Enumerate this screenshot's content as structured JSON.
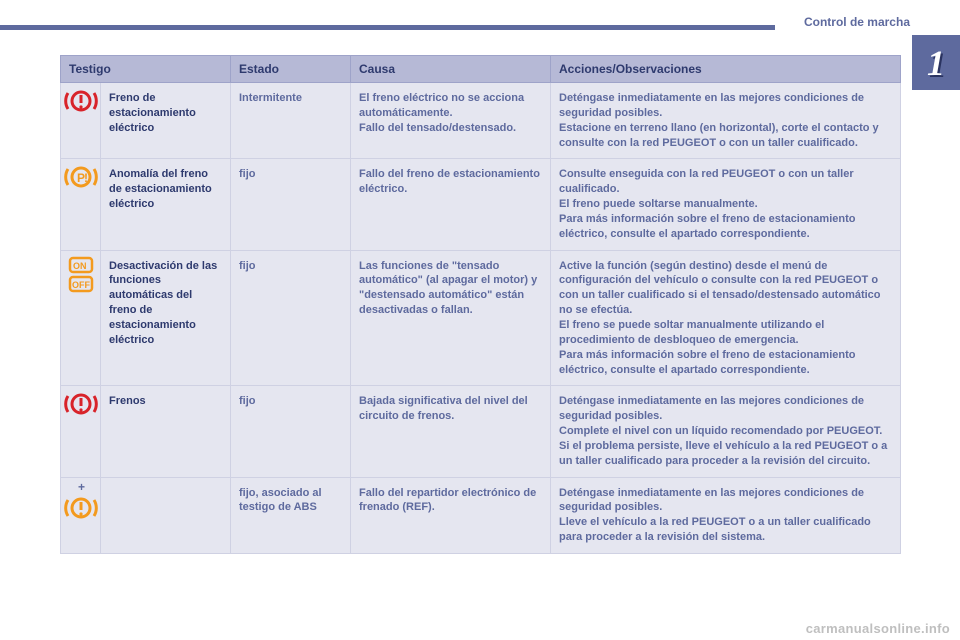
{
  "page": {
    "section_title": "Control de marcha",
    "chapter_number": "1",
    "footer_link": "carmanualsonline.info"
  },
  "colors": {
    "accent": "#5e6a9e",
    "header_bg": "#b6b9d6",
    "header_text": "#2e3a6e",
    "cell_bg": "#e5e6f0",
    "cell_text": "#5e6a9e",
    "cell_border": "#cfd1e3",
    "icon_red": "#d8232a",
    "icon_amber": "#f39a1e",
    "footer_gray": "#bfbfbf"
  },
  "table": {
    "headers": {
      "testigo": "Testigo",
      "estado": "Estado",
      "causa": "Causa",
      "acciones": "Acciones/Observaciones"
    },
    "rows": [
      {
        "icon": "brake-exclaim-red",
        "name": "Freno de estacionamiento eléctrico",
        "state": "Intermitente",
        "cause": "El freno eléctrico no se acciona automáticamente.\nFallo del tensado/destensado.",
        "action": "Deténgase inmediatamente en las mejores condiciones de seguridad posibles.\nEstacione en terreno llano (en horizontal), corte el contacto y consulte con la red PEUGEOT o con un taller cualificado."
      },
      {
        "icon": "p-exclaim-amber",
        "name": "Anomalía del freno de estacionamiento eléctrico",
        "state": "fijo",
        "cause": "Fallo del freno de estacionamiento eléctrico.",
        "action": "Consulte enseguida con la red PEUGEOT o con un taller cualificado.\nEl freno puede soltarse manualmente.\nPara más información sobre el freno de estacionamiento eléctrico, consulte el apartado correspondiente."
      },
      {
        "icon": "auto-off-amber",
        "name": "Desactivación de las funciones automáticas del freno de estacionamiento eléctrico",
        "state": "fijo",
        "cause": "Las funciones de \"tensado automático\" (al apagar el motor) y \"destensado automático\" están desactivadas o fallan.",
        "action": "Active la función (según destino) desde el menú de configuración del vehículo o consulte con la red PEUGEOT o con un taller cualificado si el tensado/destensado automático no se efectúa.\nEl freno se puede soltar manualmente utilizando el procedimiento de desbloqueo de emergencia.\nPara más información sobre el freno de estacionamiento eléctrico, consulte el apartado correspondiente."
      },
      {
        "icon": "brake-exclaim-red",
        "name": "Frenos",
        "state": "fijo",
        "cause": "Bajada significativa del nivel del circuito de frenos.",
        "action": "Deténgase inmediatamente en las mejores condiciones de seguridad posibles.\nComplete el nivel con un líquido recomendado por PEUGEOT.\nSi el problema persiste, lleve el vehículo a la red PEUGEOT o a un taller cualificado para proceder a la revisión del circuito."
      },
      {
        "icon": "plus-abs-amber",
        "name": "",
        "state": "fijo, asociado al testigo de ABS",
        "cause": "Fallo del repartidor electrónico de frenado (REF).",
        "action": "Deténgase inmediatamente en las mejores condiciones de seguridad posibles.\nLleve el vehículo a la red PEUGEOT o a un taller cualificado para proceder a la revisión del sistema."
      }
    ]
  }
}
